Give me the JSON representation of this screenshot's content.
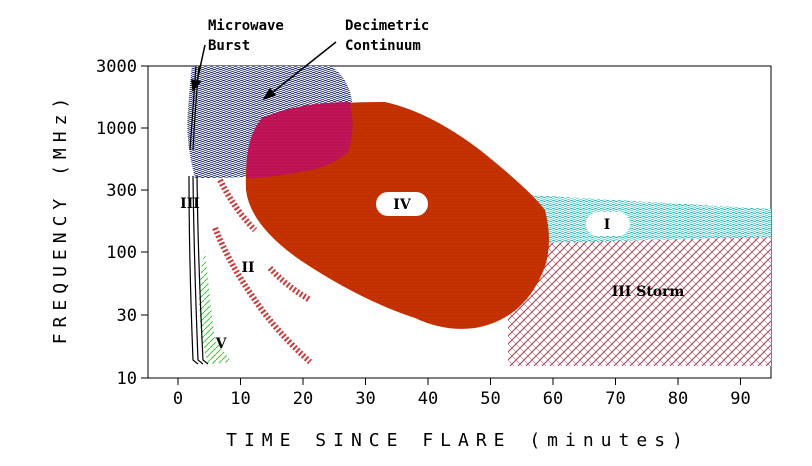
{
  "diagram": {
    "x_axis_title": "TIME SINCE FLARE (minutes)",
    "y_axis_title": "FREQUENCY (MHz)",
    "x_ticks": [
      "0",
      "10",
      "20",
      "30",
      "40",
      "50",
      "60",
      "70",
      "80",
      "90"
    ],
    "y_ticks": [
      "3000",
      "1000",
      "300",
      "100",
      "30",
      "10"
    ],
    "annotations": {
      "microwave": "Microwave\nBurst",
      "decimetric": "Decimetric\nContinuum"
    },
    "regions": [
      {
        "id": "type-iii",
        "label": "III",
        "color": "#000000"
      },
      {
        "id": "type-ii",
        "label": "II",
        "color": "#c83c3c"
      },
      {
        "id": "type-iv",
        "label": "IV",
        "color": "#c83200"
      },
      {
        "id": "type-v",
        "label": "V",
        "color": "#3cc83c"
      },
      {
        "id": "type-i",
        "label": "I",
        "color": "#28b4b4"
      },
      {
        "id": "storm",
        "label": "III Storm",
        "color": "#a0283c"
      },
      {
        "id": "decimetric-continuum",
        "label": "",
        "color": "#1e286e"
      },
      {
        "id": "overlap",
        "label": "",
        "color": "#c8145a"
      }
    ]
  }
}
